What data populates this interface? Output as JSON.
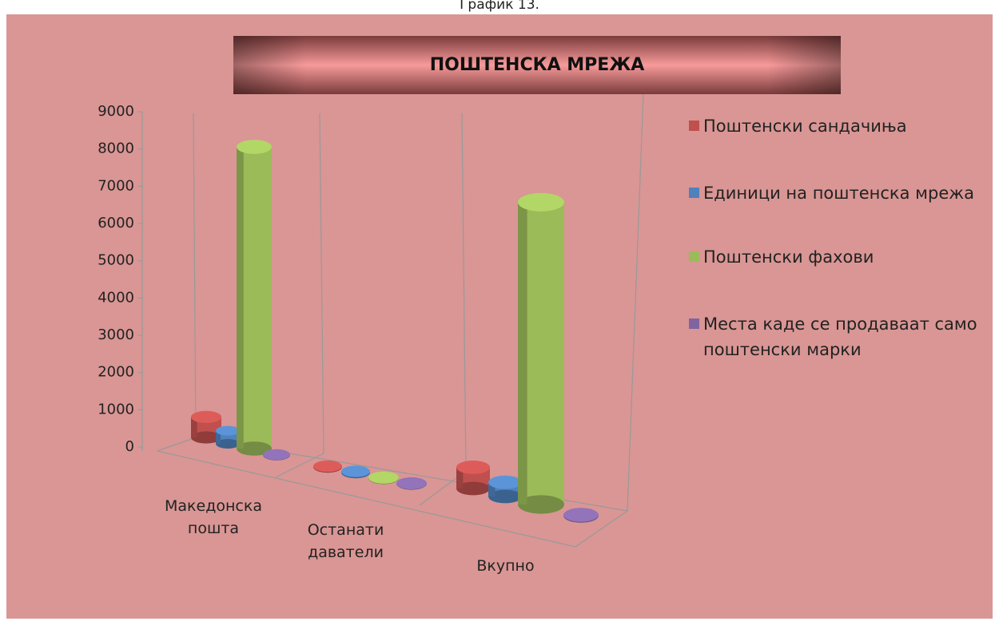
{
  "caption": "График 13.",
  "chart_data": {
    "type": "bar3d",
    "title": "ПОШТЕНСКА МРЕЖА",
    "categories": [
      "Македонска пошта",
      "Останати даватели",
      "Вкупно"
    ],
    "series": [
      {
        "name": "Поштенски сандачиња",
        "color": "#c0504d",
        "values": [
          550,
          20,
          570
        ]
      },
      {
        "name": "Единици на поштенска мрежа",
        "color": "#4f81bd",
        "values": [
          350,
          30,
          380
        ]
      },
      {
        "name": "Поштенски фахови",
        "color": "#9bbb59",
        "values": [
          8100,
          15,
          8115
        ]
      },
      {
        "name": "Места каде се продаваат само поштенски марки",
        "color": "#8064a2",
        "values": [
          10,
          10,
          20
        ]
      }
    ],
    "ylim": [
      0,
      9000
    ],
    "yticks": [
      0,
      1000,
      2000,
      3000,
      4000,
      5000,
      6000,
      7000,
      8000,
      9000
    ]
  }
}
